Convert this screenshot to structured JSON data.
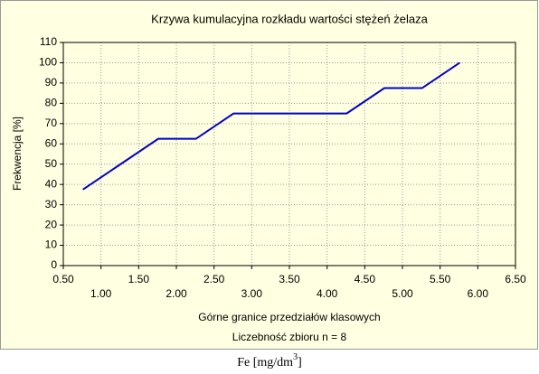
{
  "chart_data": {
    "type": "line",
    "title": "Krzywa kumulacyjna rozkładu wartości stężeń żelaza",
    "x_label": "Górne granice przedziałów klasowych",
    "y_label": "Frekwencja [%]",
    "annotation": "Liczebność zbioru  n = 8",
    "caption": {
      "text": "Fe   [mg/dm",
      "sup": "3",
      "end": "]"
    },
    "x": [
      0.76,
      1.76,
      2.26,
      2.76,
      4.26,
      4.76,
      5.26,
      5.76
    ],
    "series": [
      {
        "name": "Frekwencja",
        "color": "#0000cc",
        "values": [
          37.5,
          62.5,
          62.5,
          75,
          75,
          87.5,
          87.5,
          100
        ]
      }
    ],
    "xlim": [
      0.5,
      6.5
    ],
    "xticks": [
      {
        "value": 0.5,
        "label": "0.50"
      },
      {
        "value": 1,
        "label": "1.00"
      },
      {
        "value": 1.5,
        "label": "1.50"
      },
      {
        "value": 2,
        "label": "2.00"
      },
      {
        "value": 2.5,
        "label": "2.50"
      },
      {
        "value": 3,
        "label": "3.00"
      },
      {
        "value": 3.5,
        "label": "3.50"
      },
      {
        "value": 4,
        "label": "4.00"
      },
      {
        "value": 4.5,
        "label": "4.50"
      },
      {
        "value": 5,
        "label": "5.00"
      },
      {
        "value": 5.5,
        "label": "5.50"
      },
      {
        "value": 6,
        "label": "6.00"
      },
      {
        "value": 6.5,
        "label": "6.50"
      }
    ],
    "ylim": [
      0,
      110
    ],
    "yticks": [
      0,
      10,
      20,
      30,
      40,
      50,
      60,
      70,
      80,
      90,
      100,
      110
    ],
    "grid": true
  }
}
